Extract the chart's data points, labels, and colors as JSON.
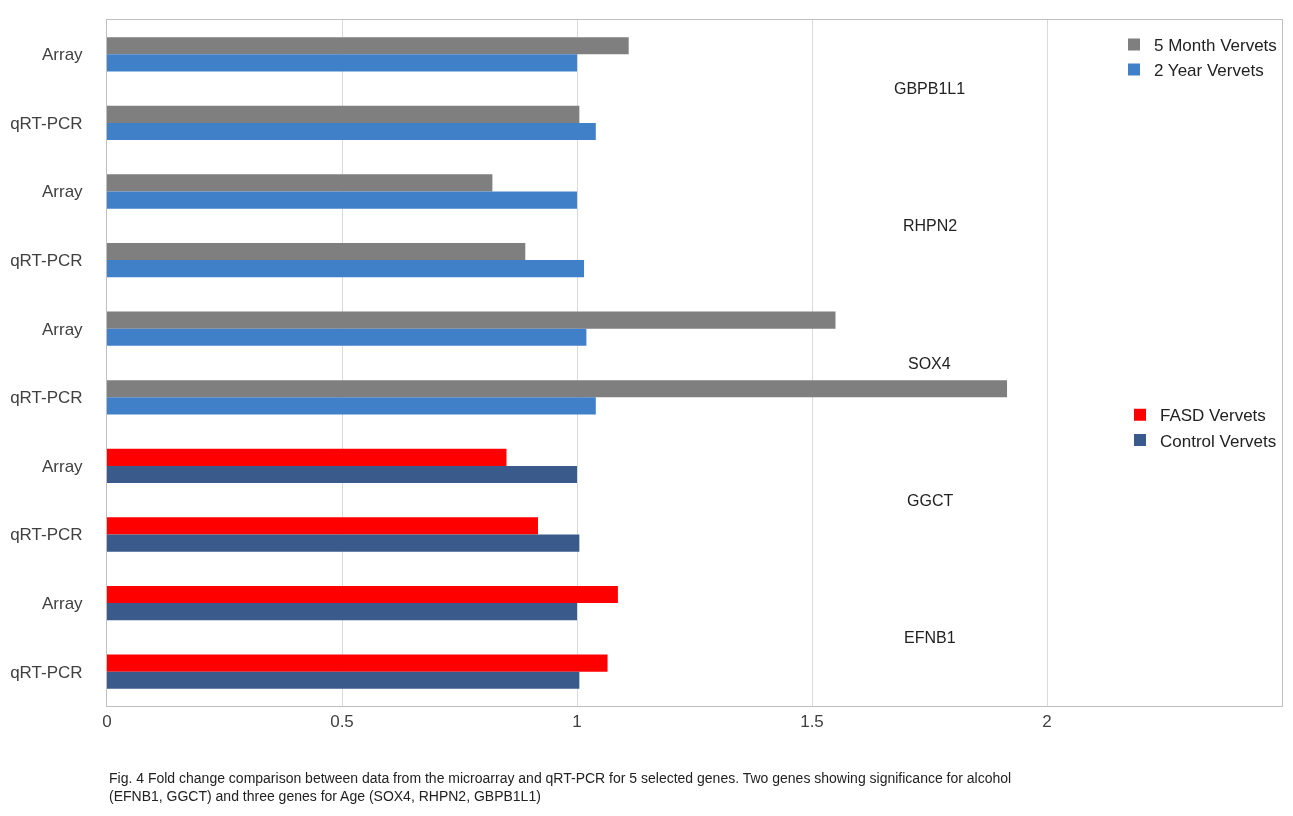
{
  "chart_data": {
    "type": "bar",
    "orientation": "horizontal",
    "categories": [
      "Array",
      "qRT-PCR",
      "Array",
      "qRT-PCR",
      "Array",
      "qRT-PCR",
      "Array",
      "qRT-PCR",
      "Array",
      "qRT-PCR"
    ],
    "series": [
      {
        "name": "5 Month Vervets",
        "color": "#7f7f7f",
        "values": [
          1.11,
          1.005,
          0.82,
          0.89,
          1.55,
          1.915,
          null,
          null,
          null,
          null
        ]
      },
      {
        "name": "2 Year Vervets",
        "color": "#4080c8",
        "values": [
          1.0,
          1.04,
          1.0,
          1.015,
          1.02,
          1.04,
          null,
          null,
          null,
          null
        ]
      },
      {
        "name": "FASD Vervets",
        "color": "#ff0000",
        "values": [
          null,
          null,
          null,
          null,
          null,
          null,
          0.85,
          0.917,
          1.087,
          1.065
        ]
      },
      {
        "name": "Control Vervets",
        "color": "#3a5a8c",
        "values": [
          null,
          null,
          null,
          null,
          null,
          null,
          1.0,
          1.005,
          1.0,
          1.005
        ]
      }
    ],
    "xlim": [
      0,
      2.5
    ],
    "xticks": [
      0,
      0.5,
      1,
      1.5,
      2
    ],
    "grid": "x",
    "legend": "right",
    "annotations": [
      "GBPB1L1",
      "RHPN2",
      "SOX4",
      "GGCT",
      "EFNB1",
      "Fig. 4 Fold change comparison between data from the microarray and qRT-PCR for 5 selected genes. Two genes showing significance for alcohol (EFNB1, GGCT) and three genes for Age (SOX4, RHPN2, GBPB1L1)"
    ]
  }
}
